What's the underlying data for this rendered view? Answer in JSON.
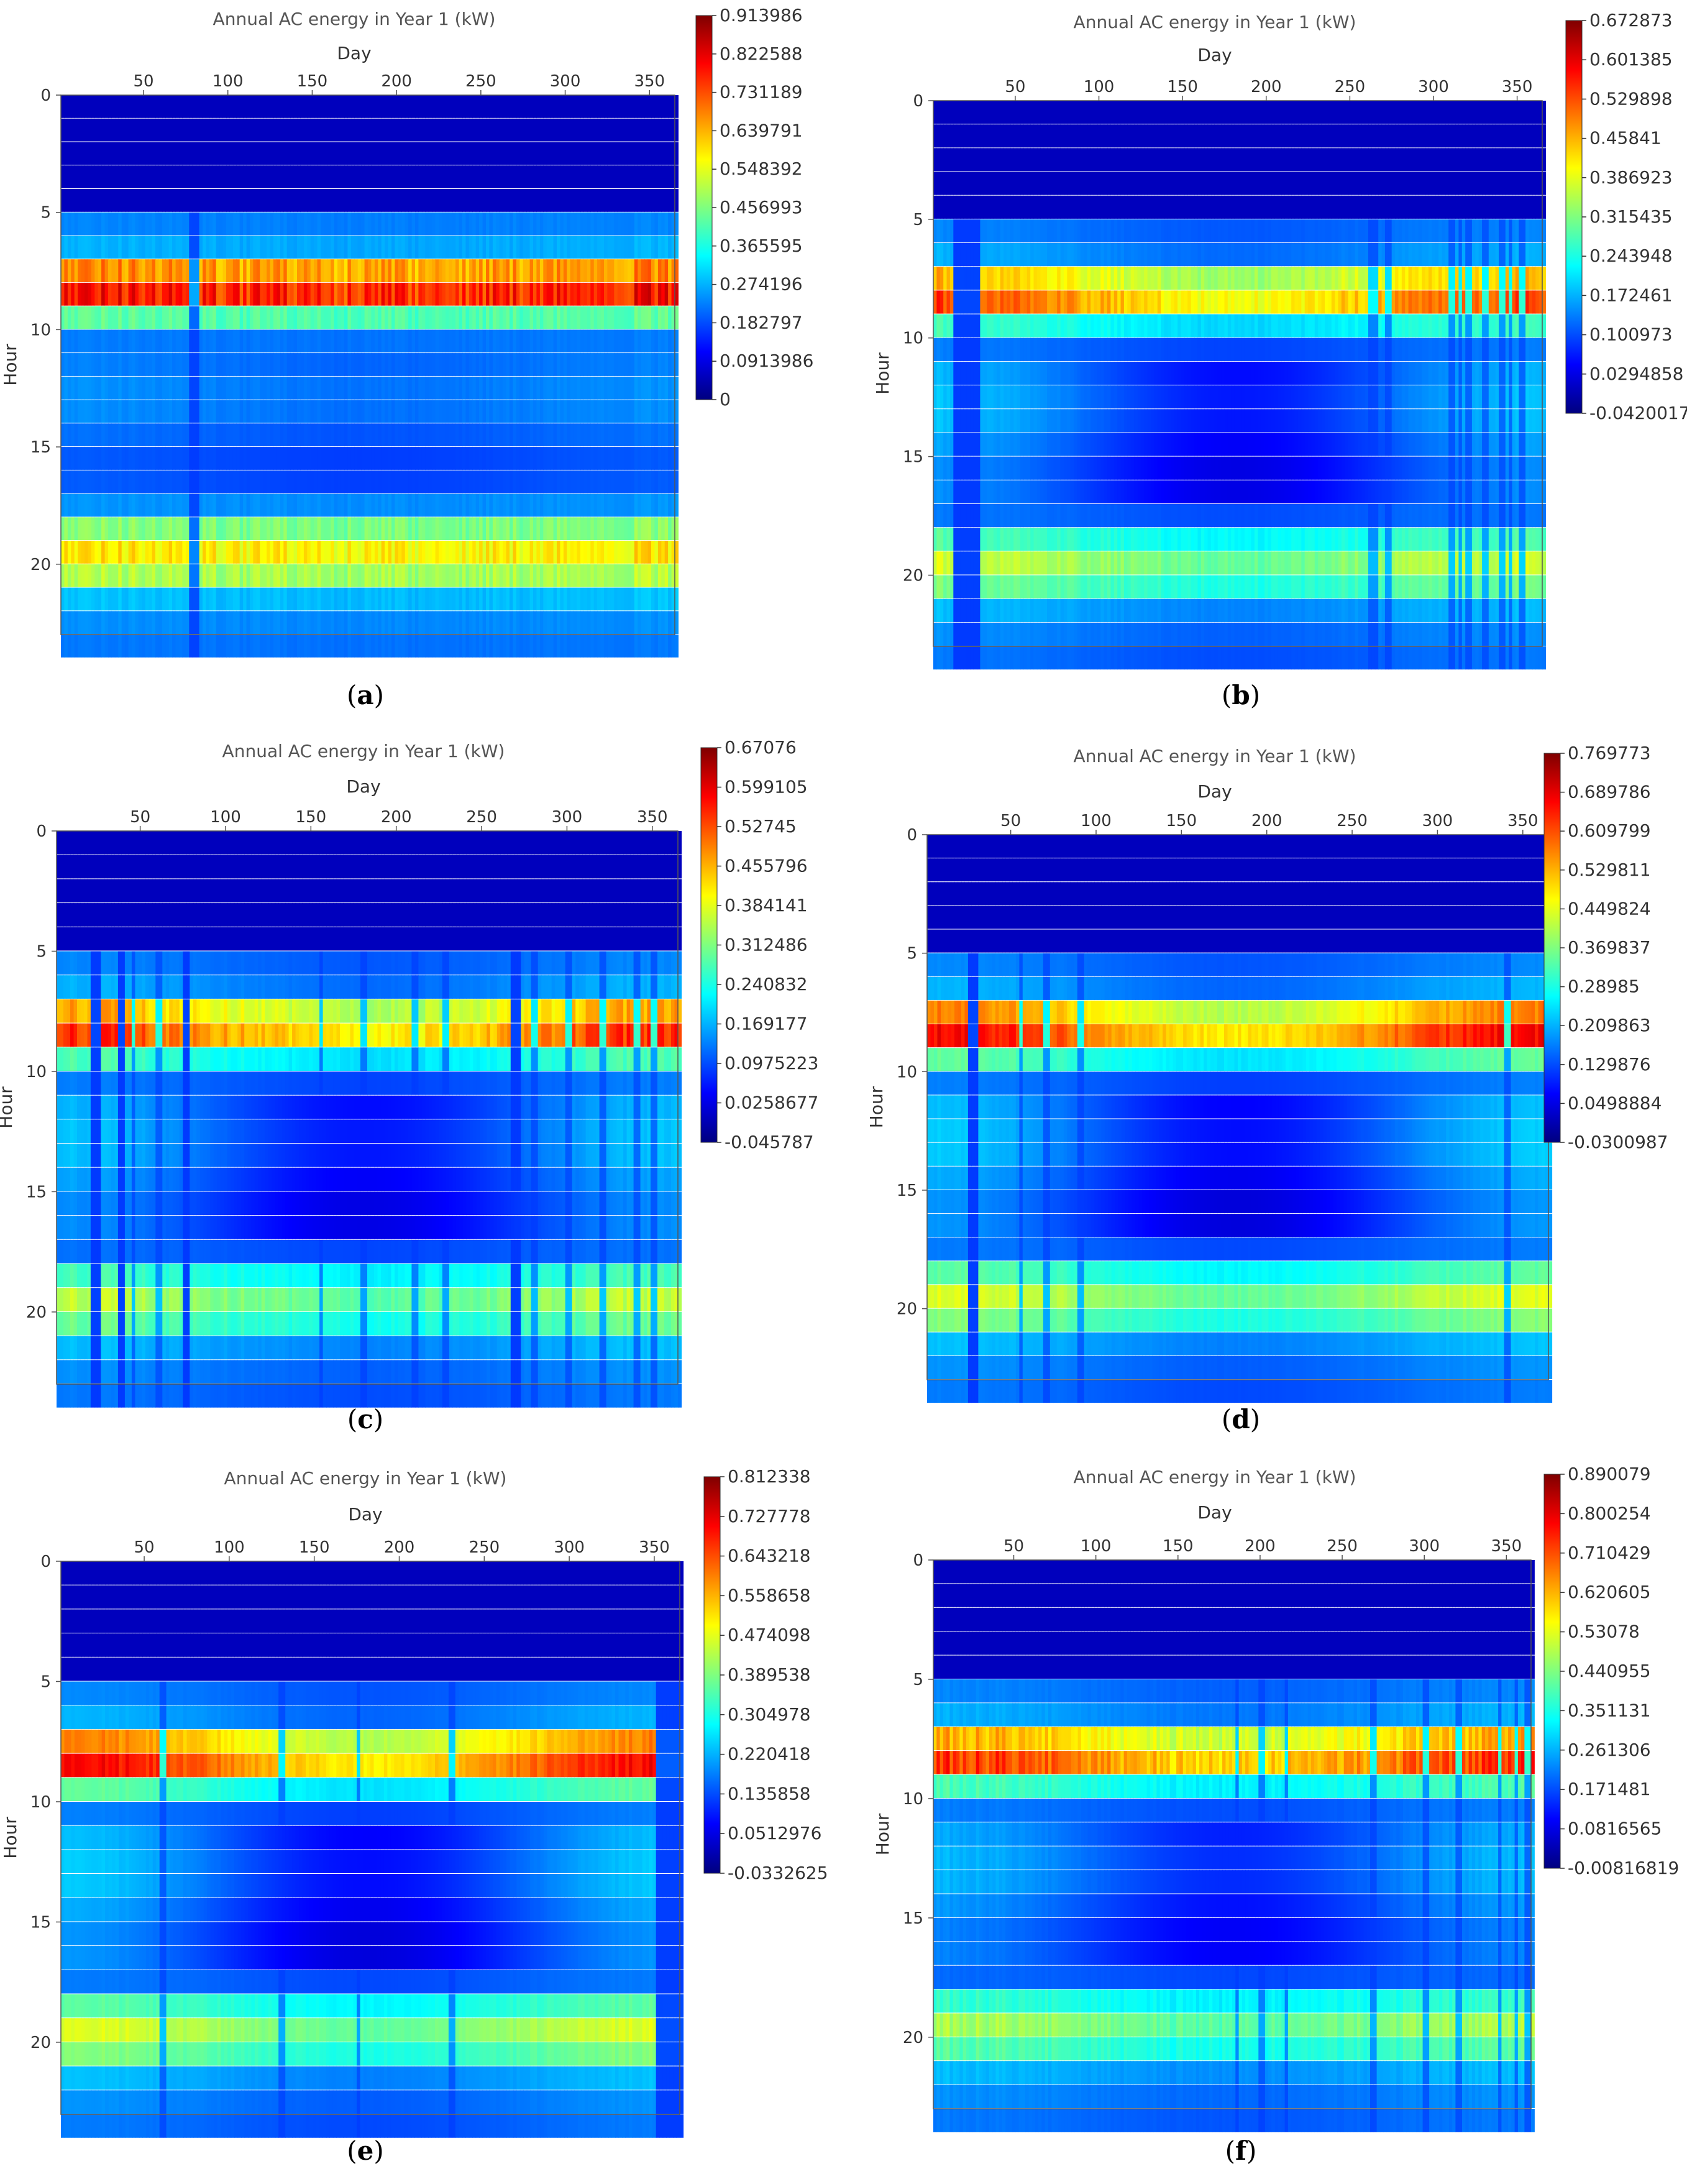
{
  "chart_data": [
    {
      "panel": "a",
      "type": "heatmap",
      "title": "Annual AC energy in Year 1 (kW)",
      "xlabel": "Day",
      "ylabel": "Hour",
      "xticks": [
        "50",
        "100",
        "150",
        "200",
        "250",
        "300",
        "350"
      ],
      "xlim": [
        1,
        365
      ],
      "yticks": [
        "0",
        "5",
        "10",
        "15",
        "20"
      ],
      "ylim": [
        0,
        23
      ],
      "colorbar": [
        "0.913986",
        "0.822588",
        "0.731189",
        "0.639791",
        "0.548392",
        "0.456993",
        "0.365595",
        "0.274196",
        "0.182797",
        "0.0913986",
        "0"
      ],
      "vmin": 0,
      "vmax": 0.913986,
      "caption": "a"
    },
    {
      "panel": "b",
      "type": "heatmap",
      "title": "Annual AC energy in Year 1 (kW)",
      "xlabel": "Day",
      "ylabel": "Hour",
      "xticks": [
        "50",
        "100",
        "150",
        "200",
        "250",
        "300",
        "350"
      ],
      "xlim": [
        1,
        365
      ],
      "yticks": [
        "0",
        "5",
        "10",
        "15",
        "20"
      ],
      "ylim": [
        0,
        23
      ],
      "colorbar": [
        "0.672873",
        "0.601385",
        "0.529898",
        "0.45841",
        "0.386923",
        "0.315435",
        "0.243948",
        "0.172461",
        "0.100973",
        "0.0294858",
        "-0.0420017"
      ],
      "vmin": -0.0420017,
      "vmax": 0.672873,
      "caption": "b"
    },
    {
      "panel": "c",
      "type": "heatmap",
      "title": "Annual AC energy in Year 1 (kW)",
      "xlabel": "Day",
      "ylabel": "Hour",
      "xticks": [
        "50",
        "100",
        "150",
        "200",
        "250",
        "300",
        "350"
      ],
      "xlim": [
        1,
        365
      ],
      "yticks": [
        "0",
        "5",
        "10",
        "15",
        "20"
      ],
      "ylim": [
        0,
        23
      ],
      "colorbar": [
        "0.67076",
        "0.599105",
        "0.52745",
        "0.455796",
        "0.384141",
        "0.312486",
        "0.240832",
        "0.169177",
        "0.0975223",
        "0.0258677",
        "-0.045787"
      ],
      "vmin": -0.045787,
      "vmax": 0.67076,
      "caption": "c"
    },
    {
      "panel": "d",
      "type": "heatmap",
      "title": "Annual AC energy in Year 1 (kW)",
      "xlabel": "Day",
      "ylabel": "Hour",
      "xticks": [
        "50",
        "100",
        "150",
        "200",
        "250",
        "300",
        "350"
      ],
      "xlim": [
        1,
        365
      ],
      "yticks": [
        "0",
        "5",
        "10",
        "15",
        "20"
      ],
      "ylim": [
        0,
        23
      ],
      "colorbar": [
        "0.769773",
        "0.689786",
        "0.609799",
        "0.529811",
        "0.449824",
        "0.369837",
        "0.28985",
        "0.209863",
        "0.129876",
        "0.0498884",
        "-0.0300987"
      ],
      "vmin": -0.0300987,
      "vmax": 0.769773,
      "caption": "d"
    },
    {
      "panel": "e",
      "type": "heatmap",
      "title": "Annual AC energy in Year 1 (kW)",
      "xlabel": "Day",
      "ylabel": "Hour",
      "xticks": [
        "50",
        "100",
        "150",
        "200",
        "250",
        "300",
        "350"
      ],
      "xlim": [
        1,
        365
      ],
      "yticks": [
        "0",
        "5",
        "10",
        "15",
        "20"
      ],
      "ylim": [
        0,
        23
      ],
      "colorbar": [
        "0.812338",
        "0.727778",
        "0.643218",
        "0.558658",
        "0.474098",
        "0.389538",
        "0.304978",
        "0.220418",
        "0.135858",
        "0.0512976",
        "-0.0332625"
      ],
      "vmin": -0.0332625,
      "vmax": 0.812338,
      "caption": "e"
    },
    {
      "panel": "f",
      "type": "heatmap",
      "title": "Annual AC energy in Year 1 (kW)",
      "xlabel": "Day",
      "ylabel": "Hour",
      "xticks": [
        "50",
        "100",
        "150",
        "200",
        "250",
        "300",
        "350"
      ],
      "xlim": [
        1,
        365
      ],
      "yticks": [
        "0",
        "5",
        "10",
        "15",
        "20"
      ],
      "ylim": [
        0,
        23
      ],
      "colorbar": [
        "0.890079",
        "0.800254",
        "0.710429",
        "0.620605",
        "0.53078",
        "0.440955",
        "0.351131",
        "0.261306",
        "0.171481",
        "0.0816565",
        "-0.00816819"
      ],
      "vmin": -0.00816819,
      "vmax": 0.890079,
      "caption": "f"
    }
  ]
}
